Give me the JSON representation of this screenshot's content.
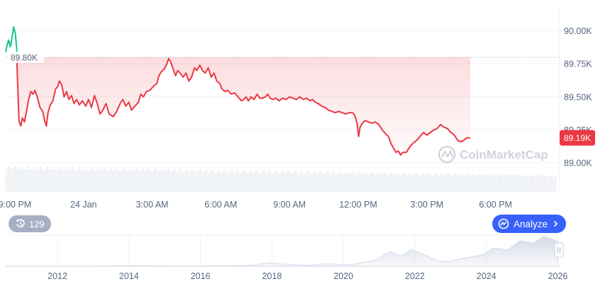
{
  "chart_data": {
    "type": "line",
    "y_ticks": [
      "90.00K",
      "89.75K",
      "89.50K",
      "89.25K",
      "89.00K"
    ],
    "y_tick_values": [
      90000,
      89750,
      89500,
      89250,
      89000
    ],
    "ylim": [
      88780,
      90180
    ],
    "x_tick_labels": [
      "9:00 PM",
      "24 Jan",
      "3:00 AM",
      "6:00 AM",
      "9:00 AM",
      "12:00 PM",
      "3:00 PM",
      "6:00 PM"
    ],
    "x_tick_hours": [
      0,
      3,
      6,
      9,
      12,
      15,
      18,
      21
    ],
    "x_range_hours": [
      -0.4,
      23.8
    ],
    "reference_line": {
      "label": "89.80K",
      "value": 89800
    },
    "current_price": {
      "label": "89.19K",
      "value": 89190
    },
    "price_series": [
      [
        -0.4,
        89840
      ],
      [
        -0.33,
        89900
      ],
      [
        -0.27,
        89930
      ],
      [
        -0.2,
        89880
      ],
      [
        -0.12,
        89950
      ],
      [
        -0.05,
        90030
      ],
      [
        0.02,
        89980
      ],
      [
        0.08,
        89870
      ],
      [
        0.1,
        89720
      ],
      [
        0.18,
        89320
      ],
      [
        0.26,
        89280
      ],
      [
        0.33,
        89340
      ],
      [
        0.42,
        89310
      ],
      [
        0.52,
        89400
      ],
      [
        0.6,
        89480
      ],
      [
        0.7,
        89540
      ],
      [
        0.8,
        89520
      ],
      [
        0.88,
        89550
      ],
      [
        0.98,
        89500
      ],
      [
        1.1,
        89420
      ],
      [
        1.22,
        89390
      ],
      [
        1.3,
        89320
      ],
      [
        1.38,
        89280
      ],
      [
        1.45,
        89380
      ],
      [
        1.55,
        89440
      ],
      [
        1.66,
        89470
      ],
      [
        1.78,
        89560
      ],
      [
        1.88,
        89580
      ],
      [
        1.95,
        89620
      ],
      [
        2.05,
        89590
      ],
      [
        2.15,
        89500
      ],
      [
        2.26,
        89540
      ],
      [
        2.36,
        89480
      ],
      [
        2.48,
        89510
      ],
      [
        2.58,
        89450
      ],
      [
        2.7,
        89480
      ],
      [
        2.82,
        89440
      ],
      [
        2.95,
        89470
      ],
      [
        3.1,
        89430
      ],
      [
        3.22,
        89480
      ],
      [
        3.35,
        89420
      ],
      [
        3.48,
        89510
      ],
      [
        3.6,
        89450
      ],
      [
        3.72,
        89370
      ],
      [
        3.85,
        89400
      ],
      [
        3.98,
        89450
      ],
      [
        4.12,
        89370
      ],
      [
        4.3,
        89350
      ],
      [
        4.45,
        89390
      ],
      [
        4.6,
        89450
      ],
      [
        4.72,
        89480
      ],
      [
        4.85,
        89430
      ],
      [
        4.98,
        89460
      ],
      [
        5.1,
        89400
      ],
      [
        5.25,
        89430
      ],
      [
        5.4,
        89460
      ],
      [
        5.5,
        89520
      ],
      [
        5.62,
        89500
      ],
      [
        5.75,
        89540
      ],
      [
        5.9,
        89550
      ],
      [
        6.05,
        89580
      ],
      [
        6.2,
        89600
      ],
      [
        6.3,
        89660
      ],
      [
        6.4,
        89690
      ],
      [
        6.52,
        89710
      ],
      [
        6.62,
        89740
      ],
      [
        6.72,
        89790
      ],
      [
        6.82,
        89760
      ],
      [
        6.92,
        89710
      ],
      [
        7.02,
        89660
      ],
      [
        7.12,
        89700
      ],
      [
        7.22,
        89680
      ],
      [
        7.35,
        89650
      ],
      [
        7.48,
        89680
      ],
      [
        7.6,
        89620
      ],
      [
        7.72,
        89650
      ],
      [
        7.85,
        89720
      ],
      [
        7.95,
        89700
      ],
      [
        8.08,
        89740
      ],
      [
        8.2,
        89700
      ],
      [
        8.32,
        89680
      ],
      [
        8.45,
        89720
      ],
      [
        8.58,
        89650
      ],
      [
        8.7,
        89680
      ],
      [
        8.82,
        89620
      ],
      [
        8.95,
        89600
      ],
      [
        9.05,
        89560
      ],
      [
        9.18,
        89540
      ],
      [
        9.3,
        89550
      ],
      [
        9.45,
        89520
      ],
      [
        9.6,
        89530
      ],
      [
        9.75,
        89500
      ],
      [
        9.9,
        89470
      ],
      [
        10.0,
        89480
      ],
      [
        10.1,
        89500
      ],
      [
        10.2,
        89470
      ],
      [
        10.32,
        89500
      ],
      [
        10.45,
        89480
      ],
      [
        10.58,
        89520
      ],
      [
        10.7,
        89490
      ],
      [
        10.82,
        89490
      ],
      [
        10.95,
        89500
      ],
      [
        11.05,
        89520
      ],
      [
        11.15,
        89490
      ],
      [
        11.28,
        89480
      ],
      [
        11.4,
        89490
      ],
      [
        11.55,
        89470
      ],
      [
        11.7,
        89490
      ],
      [
        11.85,
        89480
      ],
      [
        12.0,
        89500
      ],
      [
        12.15,
        89490
      ],
      [
        12.3,
        89480
      ],
      [
        12.45,
        89500
      ],
      [
        12.6,
        89480
      ],
      [
        12.75,
        89490
      ],
      [
        12.9,
        89470
      ],
      [
        13.0,
        89480
      ],
      [
        13.12,
        89460
      ],
      [
        13.25,
        89450
      ],
      [
        13.4,
        89430
      ],
      [
        13.55,
        89420
      ],
      [
        13.7,
        89400
      ],
      [
        13.85,
        89390
      ],
      [
        14.0,
        89380
      ],
      [
        14.15,
        89390
      ],
      [
        14.3,
        89380
      ],
      [
        14.45,
        89370
      ],
      [
        14.6,
        89380
      ],
      [
        14.75,
        89380
      ],
      [
        14.85,
        89360
      ],
      [
        14.95,
        89300
      ],
      [
        15.02,
        89200
      ],
      [
        15.08,
        89270
      ],
      [
        15.18,
        89300
      ],
      [
        15.3,
        89320
      ],
      [
        15.45,
        89310
      ],
      [
        15.6,
        89300
      ],
      [
        15.75,
        89310
      ],
      [
        15.9,
        89290
      ],
      [
        16.05,
        89250
      ],
      [
        16.2,
        89220
      ],
      [
        16.32,
        89200
      ],
      [
        16.45,
        89140
      ],
      [
        16.55,
        89110
      ],
      [
        16.65,
        89080
      ],
      [
        16.75,
        89090
      ],
      [
        16.85,
        89060
      ],
      [
        16.95,
        89080
      ],
      [
        17.1,
        89080
      ],
      [
        17.25,
        89120
      ],
      [
        17.4,
        89150
      ],
      [
        17.55,
        89170
      ],
      [
        17.7,
        89200
      ],
      [
        17.85,
        89230
      ],
      [
        18.0,
        89210
      ],
      [
        18.15,
        89230
      ],
      [
        18.3,
        89250
      ],
      [
        18.45,
        89260
      ],
      [
        18.6,
        89290
      ],
      [
        18.75,
        89270
      ],
      [
        18.9,
        89260
      ],
      [
        19.05,
        89230
      ],
      [
        19.2,
        89210
      ],
      [
        19.35,
        89170
      ],
      [
        19.48,
        89160
      ],
      [
        19.6,
        89170
      ],
      [
        19.75,
        89190
      ],
      [
        19.9,
        89190
      ]
    ],
    "volume_note": "",
    "history_ticks": [
      "2012",
      "2014",
      "2016",
      "2018",
      "2020",
      "2022",
      "2024",
      "2026"
    ],
    "history_tick_years": [
      2012,
      2014,
      2016,
      2018,
      2020,
      2022,
      2024,
      2026
    ],
    "history_range_years": [
      2010.55,
      2026.05
    ],
    "history_series": [
      [
        2010.6,
        0.2
      ],
      [
        2011.5,
        0.3
      ],
      [
        2012.5,
        0.3
      ],
      [
        2013.3,
        0.5
      ],
      [
        2013.9,
        1.5
      ],
      [
        2014.5,
        1.2
      ],
      [
        2015.5,
        0.8
      ],
      [
        2016.5,
        1.2
      ],
      [
        2017.3,
        2.0
      ],
      [
        2017.9,
        12
      ],
      [
        2018.4,
        7
      ],
      [
        2019.0,
        4
      ],
      [
        2019.5,
        9
      ],
      [
        2020.2,
        6
      ],
      [
        2020.9,
        22
      ],
      [
        2021.3,
        55
      ],
      [
        2021.6,
        38
      ],
      [
        2021.9,
        62
      ],
      [
        2022.3,
        40
      ],
      [
        2022.6,
        22
      ],
      [
        2022.9,
        17
      ],
      [
        2023.3,
        28
      ],
      [
        2023.9,
        42
      ],
      [
        2024.2,
        68
      ],
      [
        2024.6,
        60
      ],
      [
        2024.95,
        95
      ],
      [
        2025.3,
        85
      ],
      [
        2025.6,
        110
      ],
      [
        2025.85,
        100
      ],
      [
        2026.0,
        90
      ]
    ],
    "history_max": 115
  },
  "history_badge": {
    "label": "129"
  },
  "analyze_button": {
    "label": "Analyze"
  },
  "watermark": "CoinMarketCap",
  "colors": {
    "up": "#16c784",
    "down": "#ea3943",
    "accent": "#3861fb",
    "grid": "#eff2f5",
    "text": "#58667e"
  },
  "icons": {
    "history": "history-clock-icon",
    "analyze": "analyze-icon",
    "chevron": "chevron-right-icon"
  }
}
